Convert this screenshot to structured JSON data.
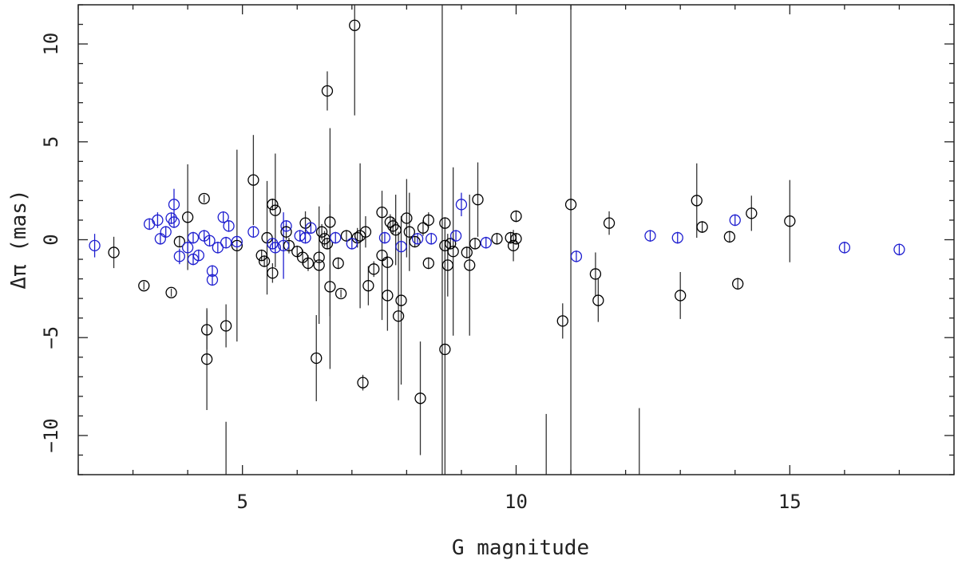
{
  "chart_data": {
    "type": "scatter",
    "xlabel": "G magnitude",
    "ylabel": "Δπ (mas)",
    "xlim": [
      2.0,
      18.0
    ],
    "ylim": [
      -12.0,
      12.0
    ],
    "x_ticks": [
      5,
      10,
      15
    ],
    "y_ticks": [
      -10,
      -5,
      0,
      5,
      10
    ],
    "x_tick_labels": [
      "5",
      "10",
      "15"
    ],
    "y_tick_labels": [
      "−10",
      "−5",
      "0",
      "5",
      "10"
    ],
    "grid": false,
    "legend": "none",
    "colors": {
      "black_series": "#000000",
      "blue_series": "#1f1fd0",
      "errorbar": "#333333"
    },
    "series": [
      {
        "color": "black",
        "points": [
          {
            "x": 2.65,
            "y": -0.65,
            "err": 0.8
          },
          {
            "x": 3.2,
            "y": -2.35,
            "err": 0.2
          },
          {
            "x": 3.7,
            "y": -2.7,
            "err": 0.2
          },
          {
            "x": 3.85,
            "y": -0.1,
            "err": 0.3
          },
          {
            "x": 4.0,
            "y": 1.15,
            "err": 2.7
          },
          {
            "x": 4.3,
            "y": 2.1,
            "err": 0.2
          },
          {
            "x": 4.35,
            "y": -4.6,
            "err": 1.0
          },
          {
            "x": 4.35,
            "y": -6.1,
            "err": 2.6
          },
          {
            "x": 4.7,
            "y": -4.4,
            "err": 1.1
          },
          {
            "x": 4.9,
            "y": -0.3,
            "err": 4.9
          },
          {
            "x": 5.2,
            "y": 3.05,
            "err": 2.3
          },
          {
            "x": 5.35,
            "y": -0.8,
            "err": 0.3
          },
          {
            "x": 5.4,
            "y": -1.1,
            "err": 0.3
          },
          {
            "x": 5.45,
            "y": 0.1,
            "err": 2.9
          },
          {
            "x": 5.55,
            "y": 1.8,
            "err": 0.3
          },
          {
            "x": 5.6,
            "y": 1.5,
            "err": 2.9
          },
          {
            "x": 5.55,
            "y": -1.7,
            "err": 0.5
          },
          {
            "x": 5.8,
            "y": 0.4,
            "err": 0.4
          },
          {
            "x": 5.85,
            "y": -0.3,
            "err": 0.4
          },
          {
            "x": 6.0,
            "y": -0.6,
            "err": 0.3
          },
          {
            "x": 6.1,
            "y": -0.9,
            "err": 0.4
          },
          {
            "x": 6.15,
            "y": 0.85,
            "err": 0.6
          },
          {
            "x": 6.2,
            "y": -1.2,
            "err": 0.4
          },
          {
            "x": 6.35,
            "y": -6.05,
            "err": 2.2
          },
          {
            "x": 6.4,
            "y": -1.3,
            "err": 3.0
          },
          {
            "x": 6.4,
            "y": -0.9,
            "err": 0.4
          },
          {
            "x": 6.45,
            "y": 0.4,
            "err": 0.4
          },
          {
            "x": 6.5,
            "y": 0.05,
            "err": 0.4
          },
          {
            "x": 6.55,
            "y": 7.6,
            "err": 1.0
          },
          {
            "x": 6.55,
            "y": -0.2,
            "err": 0.3
          },
          {
            "x": 6.6,
            "y": 0.9,
            "err": 4.8
          },
          {
            "x": 6.6,
            "y": -2.4,
            "err": 4.2
          },
          {
            "x": 6.75,
            "y": -1.2,
            "err": 0.3
          },
          {
            "x": 6.8,
            "y": -2.75,
            "err": 0.2
          },
          {
            "x": 6.9,
            "y": 0.2,
            "err": 0.3
          },
          {
            "x": 7.05,
            "y": 10.95,
            "err": 4.6
          },
          {
            "x": 7.1,
            "y": 0.1,
            "err": 0.5
          },
          {
            "x": 7.15,
            "y": 0.2,
            "err": 3.7
          },
          {
            "x": 7.2,
            "y": -7.3,
            "err": 0.4
          },
          {
            "x": 7.25,
            "y": 0.4,
            "err": 0.8
          },
          {
            "x": 7.3,
            "y": -2.35,
            "err": 1.0
          },
          {
            "x": 7.4,
            "y": -1.5,
            "err": 0.4
          },
          {
            "x": 7.55,
            "y": 1.4,
            "err": 0.3
          },
          {
            "x": 7.55,
            "y": -0.8,
            "err": 3.3
          },
          {
            "x": 7.65,
            "y": -2.85,
            "err": 1.8
          },
          {
            "x": 7.65,
            "y": -1.15,
            "err": 0.3
          },
          {
            "x": 7.7,
            "y": 0.9,
            "err": 0.4
          },
          {
            "x": 7.75,
            "y": 0.7,
            "err": 0.4
          },
          {
            "x": 7.8,
            "y": 0.5,
            "err": 1.8
          },
          {
            "x": 7.85,
            "y": -3.9,
            "err": 4.3
          },
          {
            "x": 7.9,
            "y": -3.1,
            "err": 4.3
          },
          {
            "x": 8.0,
            "y": 1.1,
            "err": 2.0
          },
          {
            "x": 8.05,
            "y": 0.4,
            "err": 2.0
          },
          {
            "x": 8.15,
            "y": -0.1,
            "err": 0.3
          },
          {
            "x": 8.25,
            "y": -8.1,
            "err": 2.9
          },
          {
            "x": 8.3,
            "y": 0.6,
            "err": 0.4
          },
          {
            "x": 8.4,
            "y": 1.0,
            "err": 0.4
          },
          {
            "x": 8.4,
            "y": -1.2,
            "err": 0.3
          },
          {
            "x": 8.7,
            "y": 0.85,
            "err": 0.3
          },
          {
            "x": 8.7,
            "y": -5.6,
            "err": 6.5
          },
          {
            "x": 8.7,
            "y": -0.3,
            "err": 0.3
          },
          {
            "x": 8.75,
            "y": -1.3,
            "err": 1.6
          },
          {
            "x": 8.8,
            "y": -0.2,
            "err": 0.3
          },
          {
            "x": 8.85,
            "y": -0.6,
            "err": 4.3
          },
          {
            "x": 9.1,
            "y": -0.65,
            "err": 0.3
          },
          {
            "x": 9.15,
            "y": -1.3,
            "err": 3.6
          },
          {
            "x": 9.25,
            "y": -0.2,
            "err": 0.3
          },
          {
            "x": 9.3,
            "y": 2.05,
            "err": 1.9
          },
          {
            "x": 9.65,
            "y": 0.05,
            "err": 0.3
          },
          {
            "x": 9.9,
            "y": 0.1,
            "err": 0.3
          },
          {
            "x": 9.95,
            "y": -0.3,
            "err": 0.8
          },
          {
            "x": 10.0,
            "y": 0.05,
            "err": 0.3
          },
          {
            "x": 10.0,
            "y": 1.2,
            "err": 0.3
          },
          {
            "x": 10.85,
            "y": -4.15,
            "err": 0.9
          },
          {
            "x": 11.0,
            "y": 1.8,
            "err": 0.3
          },
          {
            "x": 11.45,
            "y": -1.75,
            "err": 1.1
          },
          {
            "x": 11.5,
            "y": -3.1,
            "err": 1.1
          },
          {
            "x": 11.7,
            "y": 0.85,
            "err": 0.6
          },
          {
            "x": 13.3,
            "y": 2.0,
            "err": 1.9
          },
          {
            "x": 13.4,
            "y": 0.65,
            "err": 0.3
          },
          {
            "x": 13.0,
            "y": -2.85,
            "err": 1.2
          },
          {
            "x": 13.9,
            "y": 0.15,
            "err": 0.3
          },
          {
            "x": 14.05,
            "y": -2.25,
            "err": 0.3
          },
          {
            "x": 14.3,
            "y": 1.35,
            "err": 0.9
          },
          {
            "x": 15.0,
            "y": 0.95,
            "err": 2.1
          }
        ]
      },
      {
        "color": "blue",
        "points": [
          {
            "x": 2.3,
            "y": -0.3,
            "err": 0.6
          },
          {
            "x": 3.3,
            "y": 0.8,
            "err": 0.3
          },
          {
            "x": 3.45,
            "y": 1.0,
            "err": 0.4
          },
          {
            "x": 3.5,
            "y": 0.05,
            "err": 0.3
          },
          {
            "x": 3.6,
            "y": 0.4,
            "err": 0.3
          },
          {
            "x": 3.7,
            "y": 1.1,
            "err": 0.3
          },
          {
            "x": 3.75,
            "y": 1.8,
            "err": 0.8
          },
          {
            "x": 3.75,
            "y": 0.9,
            "err": 0.3
          },
          {
            "x": 3.85,
            "y": -0.85,
            "err": 0.4
          },
          {
            "x": 4.0,
            "y": -0.4,
            "err": 0.3
          },
          {
            "x": 4.1,
            "y": -1.0,
            "err": 0.3
          },
          {
            "x": 4.1,
            "y": 0.1,
            "err": 0.3
          },
          {
            "x": 4.2,
            "y": -0.8,
            "err": 0.3
          },
          {
            "x": 4.3,
            "y": 0.2,
            "err": 0.3
          },
          {
            "x": 4.4,
            "y": -0.05,
            "err": 0.3
          },
          {
            "x": 4.45,
            "y": -1.6,
            "err": 0.3
          },
          {
            "x": 4.45,
            "y": -2.05,
            "err": 0.3
          },
          {
            "x": 4.55,
            "y": -0.4,
            "err": 0.3
          },
          {
            "x": 4.65,
            "y": 1.15,
            "err": 0.3
          },
          {
            "x": 4.7,
            "y": -0.15,
            "err": 0.3
          },
          {
            "x": 4.75,
            "y": 0.7,
            "err": 0.3
          },
          {
            "x": 4.9,
            "y": -0.1,
            "err": 0.3
          },
          {
            "x": 5.2,
            "y": 0.4,
            "err": 0.3
          },
          {
            "x": 5.55,
            "y": -0.2,
            "err": 0.3
          },
          {
            "x": 5.6,
            "y": -0.4,
            "err": 0.3
          },
          {
            "x": 5.75,
            "y": -0.3,
            "err": 1.7
          },
          {
            "x": 5.8,
            "y": 0.7,
            "err": 0.3
          },
          {
            "x": 6.05,
            "y": 0.2,
            "err": 0.3
          },
          {
            "x": 6.15,
            "y": 0.1,
            "err": 0.3
          },
          {
            "x": 6.25,
            "y": 0.6,
            "err": 0.3
          },
          {
            "x": 6.7,
            "y": 0.1,
            "err": 0.3
          },
          {
            "x": 7.0,
            "y": -0.2,
            "err": 0.3
          },
          {
            "x": 7.6,
            "y": 0.1,
            "err": 0.3
          },
          {
            "x": 7.9,
            "y": -0.35,
            "err": 0.3
          },
          {
            "x": 8.2,
            "y": 0.05,
            "err": 0.3
          },
          {
            "x": 8.45,
            "y": 0.05,
            "err": 0.3
          },
          {
            "x": 8.9,
            "y": 0.2,
            "err": 0.3
          },
          {
            "x": 9.0,
            "y": 1.8,
            "err": 0.6
          },
          {
            "x": 9.45,
            "y": -0.15,
            "err": 0.3
          },
          {
            "x": 11.1,
            "y": -0.85,
            "err": 0.3
          },
          {
            "x": 12.45,
            "y": 0.2,
            "err": 0.3
          },
          {
            "x": 12.95,
            "y": 0.1,
            "err": 0.3
          },
          {
            "x": 14.0,
            "y": 1.0,
            "err": 0.3
          },
          {
            "x": 16.0,
            "y": -0.4,
            "err": 0.3
          },
          {
            "x": 17.0,
            "y": -0.5,
            "err": 0.3
          }
        ]
      }
    ],
    "extra_bars": [
      {
        "x": 4.7,
        "ylow": -12.5,
        "yhigh": -9.3
      },
      {
        "x": 8.65,
        "ylow": -12.5,
        "yhigh": 12.5
      },
      {
        "x": 10.55,
        "ylow": -12.5,
        "yhigh": -8.9
      },
      {
        "x": 11.0,
        "ylow": -12.5,
        "yhigh": 12.5
      },
      {
        "x": 12.25,
        "ylow": -12.5,
        "yhigh": -8.6
      }
    ]
  }
}
